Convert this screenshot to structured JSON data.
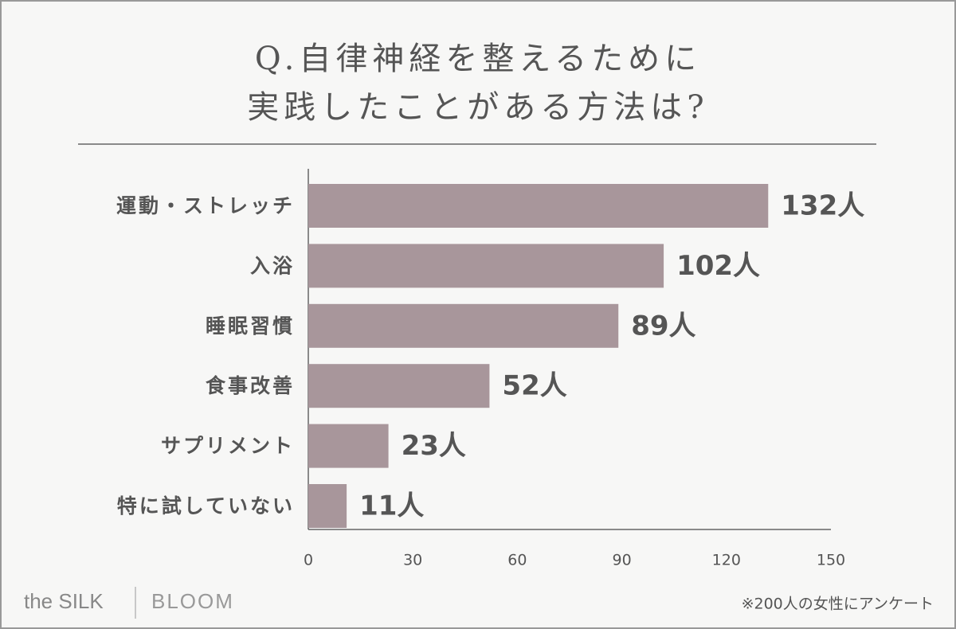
{
  "chart_data": {
    "type": "bar",
    "orientation": "horizontal",
    "title": [
      "Q.自律神経を整えるために",
      "実践したことがある方法は?"
    ],
    "categories": [
      "運動・ストレッチ",
      "入浴",
      "睡眠習慣",
      "食事改善",
      "サプリメント",
      "特に試していない"
    ],
    "values": [
      132,
      102,
      89,
      52,
      23,
      11
    ],
    "value_labels": [
      "132人",
      "102人",
      "89人",
      "52人",
      "23人",
      "11人"
    ],
    "color": "#a8969b",
    "xlim": [
      0,
      150
    ],
    "xticks": [
      0,
      30,
      60,
      90,
      120,
      150
    ],
    "note": "※200人の女性にアンケート",
    "brand": [
      "the SILK",
      "BLOOM"
    ]
  }
}
